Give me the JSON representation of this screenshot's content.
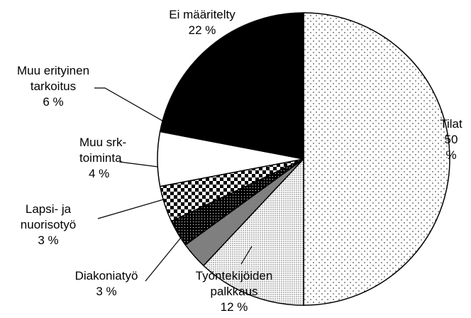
{
  "chart_data": {
    "type": "pie",
    "categories": [
      "Tilat",
      "Työntekijöiden\npalkkaus",
      "Diakoniatyö",
      "Lapsi- ja\nnuorisotyö",
      "Muu srk-\ntoiminta",
      "Muu erityinen\ntarkoitus",
      "Ei määritelty"
    ],
    "values": [
      50,
      12,
      3,
      3,
      4,
      6,
      22
    ],
    "value_labels": [
      "50 %",
      "12 %",
      "3 %",
      "3 %",
      "4 %",
      "6 %",
      "22 %"
    ]
  }
}
